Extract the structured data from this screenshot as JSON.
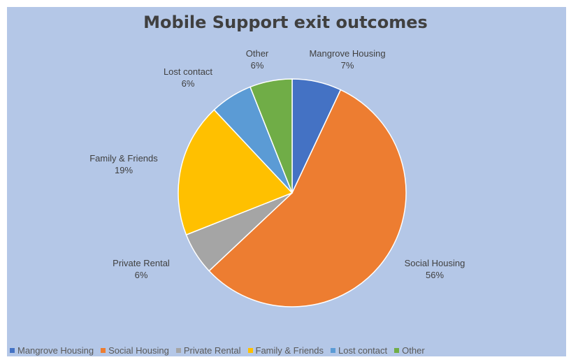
{
  "chart_data": {
    "type": "pie",
    "title": "Mobile Support exit outcomes",
    "categories": [
      "Mangrove Housing",
      "Social Housing",
      "Private Rental",
      "Family & Friends",
      "Lost contact",
      "Other"
    ],
    "values": [
      7,
      56,
      6,
      19,
      6,
      6
    ],
    "value_labels": [
      "7%",
      "56%",
      "6%",
      "19%",
      "6%",
      "6%"
    ],
    "colors": [
      "#4472c4",
      "#ed7d31",
      "#a5a5a5",
      "#ffc000",
      "#5b9bd5",
      "#70ad47"
    ],
    "legend_position": "bottom",
    "background": "#b4c7e7"
  }
}
